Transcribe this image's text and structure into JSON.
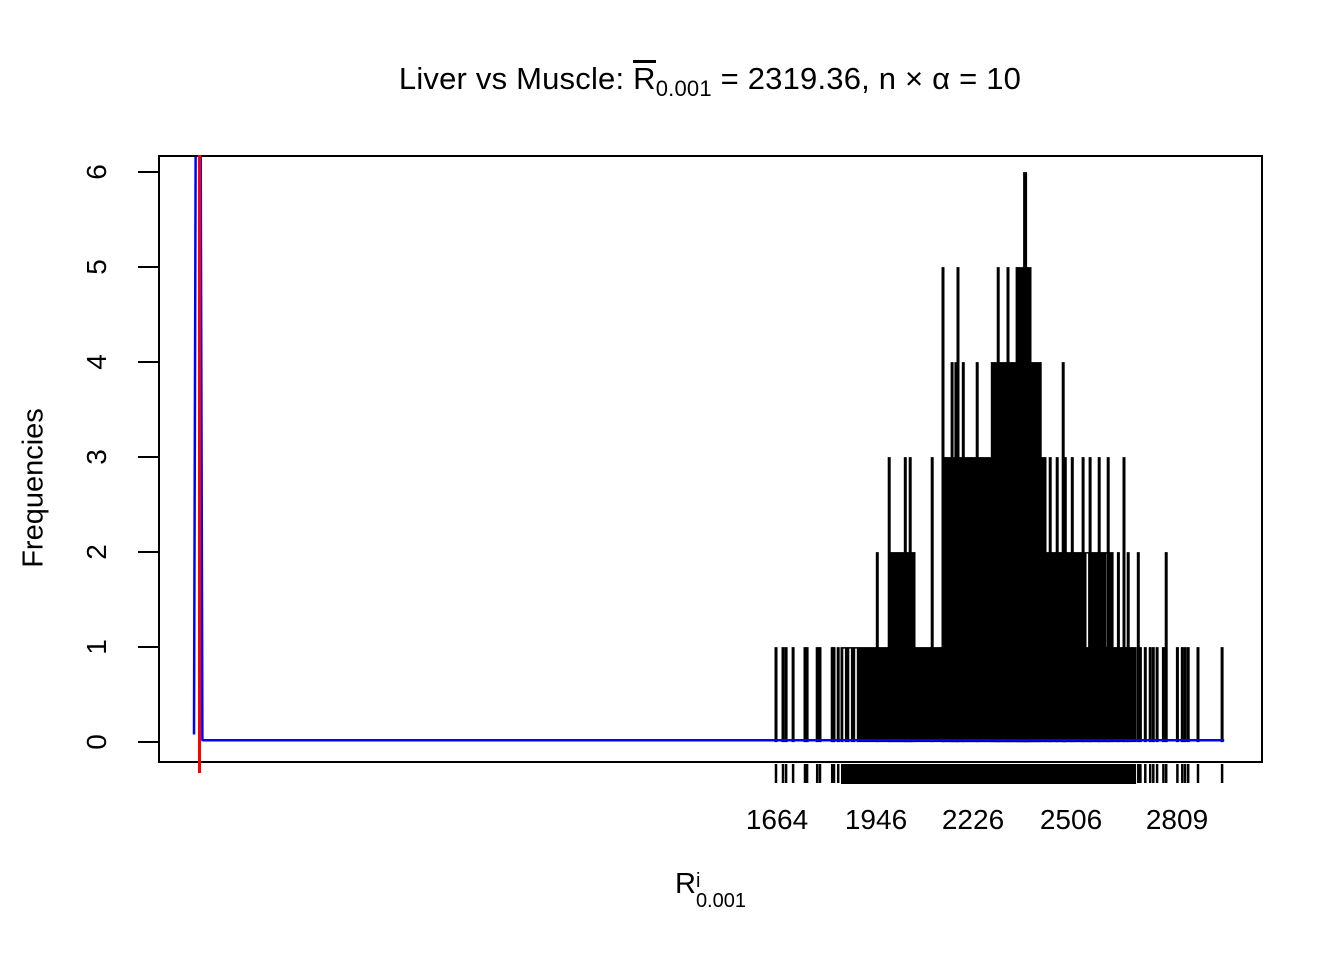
{
  "title": {
    "prefix": "Liver vs Muscle: ",
    "r": "R",
    "r_sub": "0.001",
    "suffix": " = 2319.36, n × α = 10"
  },
  "xlabel_parts": {
    "base": "R",
    "sup": "i",
    "sub": "0.001"
  },
  "chart_data": {
    "type": "bar",
    "subtype": "frequency-spike-histogram",
    "title": "Liver vs Muscle: R(bar)_0.001 = 2319.36, n × α = 10",
    "xlabel": "R^i_0.001",
    "ylabel": "Frequencies",
    "x_ticks": [
      1664,
      1946,
      2226,
      2506,
      2809
    ],
    "y_ticks": [
      0,
      1,
      2,
      3,
      4,
      5,
      6
    ],
    "xlim": [
      -108,
      3055
    ],
    "ylim": [
      -0.22,
      6.18
    ],
    "grid": false,
    "legend": "none",
    "bands": [
      {
        "freq": 1,
        "from": 1850,
        "to": 2689
      },
      {
        "freq": 2,
        "from": 1990,
        "to": 2056
      },
      {
        "freq": 2,
        "from": 2434,
        "to": 2623
      },
      {
        "freq": 3,
        "from": 2139,
        "to": 2431
      },
      {
        "freq": 4,
        "from": 2280,
        "to": 2417
      },
      {
        "freq": 5,
        "from": 2351,
        "to": 2388
      }
    ],
    "notches": [
      {
        "freq": 1,
        "at": 1856
      },
      {
        "freq": 1,
        "at": 1873
      },
      {
        "freq": 1,
        "at": 1890
      },
      {
        "freq": 2,
        "at": 2552
      },
      {
        "freq": 2,
        "at": 2609
      }
    ],
    "spikes": [
      {
        "v": 1661,
        "f": 1
      },
      {
        "v": 1681,
        "f": 1
      },
      {
        "v": 1690,
        "f": 1
      },
      {
        "v": 1710,
        "f": 1
      },
      {
        "v": 1744,
        "f": 1
      },
      {
        "v": 1750,
        "f": 1
      },
      {
        "v": 1779,
        "f": 1
      },
      {
        "v": 1787,
        "f": 1
      },
      {
        "v": 1822,
        "f": 1
      },
      {
        "v": 1827,
        "f": 1
      },
      {
        "v": 1839,
        "f": 1
      },
      {
        "v": 2704,
        "f": 1
      },
      {
        "v": 2718,
        "f": 1
      },
      {
        "v": 2732,
        "f": 1
      },
      {
        "v": 2741,
        "f": 1
      },
      {
        "v": 2752,
        "f": 1
      },
      {
        "v": 2770,
        "f": 1
      },
      {
        "v": 2810,
        "f": 1
      },
      {
        "v": 2824,
        "f": 1
      },
      {
        "v": 2832,
        "f": 1
      },
      {
        "v": 2841,
        "f": 1
      },
      {
        "v": 2869,
        "f": 1
      },
      {
        "v": 2938,
        "f": 1
      },
      {
        "v": 1951,
        "f": 2
      },
      {
        "v": 2641,
        "f": 2
      },
      {
        "v": 2669,
        "f": 2
      },
      {
        "v": 2698,
        "f": 2
      },
      {
        "v": 2778,
        "f": 2
      },
      {
        "v": 1985,
        "f": 3
      },
      {
        "v": 2031,
        "f": 3
      },
      {
        "v": 2045,
        "f": 3
      },
      {
        "v": 2108,
        "f": 3
      },
      {
        "v": 2446,
        "f": 3
      },
      {
        "v": 2466,
        "f": 3
      },
      {
        "v": 2489,
        "f": 3
      },
      {
        "v": 2509,
        "f": 3
      },
      {
        "v": 2540,
        "f": 3
      },
      {
        "v": 2560,
        "f": 3
      },
      {
        "v": 2586,
        "f": 3
      },
      {
        "v": 2612,
        "f": 3
      },
      {
        "v": 2657,
        "f": 3
      },
      {
        "v": 2165,
        "f": 4
      },
      {
        "v": 2176,
        "f": 4
      },
      {
        "v": 2197,
        "f": 4
      },
      {
        "v": 2237,
        "f": 4
      },
      {
        "v": 2483,
        "f": 4
      },
      {
        "v": 2139,
        "f": 5
      },
      {
        "v": 2182,
        "f": 5
      },
      {
        "v": 2297,
        "f": 5
      },
      {
        "v": 2325,
        "f": 5
      },
      {
        "v": 2374,
        "f": 6
      }
    ],
    "red_vline_x": 10,
    "density_line": [
      [
        -5,
        0.08
      ],
      [
        2,
        9
      ],
      [
        12,
        9
      ],
      [
        19,
        0.02
      ],
      [
        2944,
        0.02
      ]
    ],
    "rug_band": {
      "from": 1850,
      "to": 2689
    },
    "colors": {
      "spikes": "#000000",
      "density": "#0000ff",
      "vline": "#ff0000",
      "axis": "#000000",
      "background": "#ffffff"
    }
  }
}
